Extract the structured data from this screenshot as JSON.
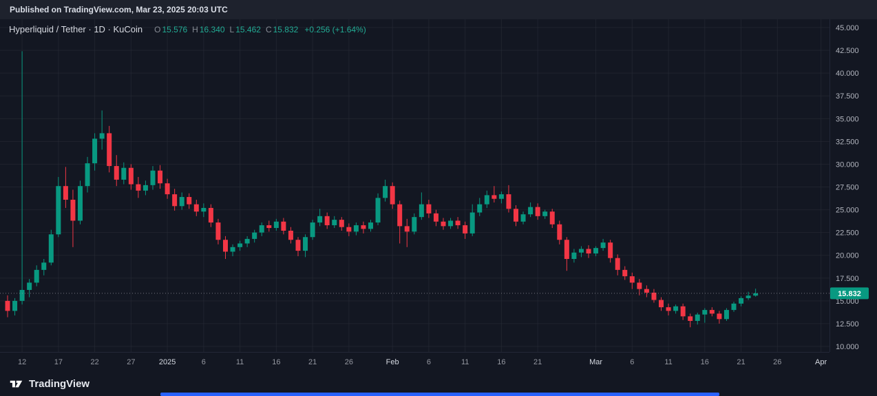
{
  "published_bar": {
    "text": "Published on TradingView.com, Mar 23, 2025 20:03 UTC"
  },
  "legend": {
    "title": "Hyperliquid / Tether · 1D · KuCoin",
    "ohlc": {
      "o_label": "O",
      "o": "15.576",
      "h_label": "H",
      "h": "16.340",
      "l_label": "L",
      "l": "15.462",
      "c_label": "C",
      "c": "15.832",
      "change": "+0.256 (+1.64%)"
    }
  },
  "price_label": "15.832",
  "y_axis": {
    "labels": [
      "45.000",
      "42.500",
      "40.000",
      "37.500",
      "35.000",
      "32.500",
      "30.000",
      "27.500",
      "25.000",
      "22.500",
      "20.000",
      "17.500",
      "15.000",
      "12.500",
      "10.000"
    ]
  },
  "footer": {
    "brand": "TradingView"
  },
  "colors": {
    "bg": "#131722",
    "topbar_bg": "#1e222d",
    "up": "#089981",
    "down": "#f23645",
    "value_text": "#22ab94",
    "axis_text": "#b2b5be",
    "axis_text_major": "#d6dae2",
    "muted_text": "#9598a1",
    "grid": "rgba(42,46,57,0.55)",
    "axis_line": "#232838",
    "price_line": "#9598a1",
    "price_label_bg": "#089981",
    "price_label_text": "#ffffff",
    "scrollbar": "#2962ff"
  },
  "chart_data": {
    "type": "candlestick",
    "title": "Hyperliquid / Tether",
    "exchange": "KuCoin",
    "interval": "1D",
    "start_date": "2024-12-10",
    "interval_days": 1,
    "end_date": "2025-03-23",
    "current": {
      "open": 15.576,
      "high": 16.34,
      "low": 15.462,
      "close": 15.832,
      "change": 0.256,
      "change_pct": 1.64
    },
    "last_price": 15.832,
    "ylim": [
      10,
      45
    ],
    "y_ticks": [
      45,
      42.5,
      40,
      37.5,
      35,
      32.5,
      30,
      27.5,
      25,
      22.5,
      20,
      17.5,
      15,
      12.5,
      10
    ],
    "x_ticks": [
      {
        "i": 2,
        "label": "12",
        "major": false
      },
      {
        "i": 7,
        "label": "17",
        "major": false
      },
      {
        "i": 12,
        "label": "22",
        "major": false
      },
      {
        "i": 17,
        "label": "27",
        "major": false
      },
      {
        "i": 22,
        "label": "2025",
        "major": true
      },
      {
        "i": 27,
        "label": "6",
        "major": false
      },
      {
        "i": 32,
        "label": "11",
        "major": false
      },
      {
        "i": 37,
        "label": "16",
        "major": false
      },
      {
        "i": 42,
        "label": "21",
        "major": false
      },
      {
        "i": 47,
        "label": "26",
        "major": false
      },
      {
        "i": 53,
        "label": "Feb",
        "major": true
      },
      {
        "i": 58,
        "label": "6",
        "major": false
      },
      {
        "i": 63,
        "label": "11",
        "major": false
      },
      {
        "i": 68,
        "label": "16",
        "major": false
      },
      {
        "i": 73,
        "label": "21",
        "major": false
      },
      {
        "i": 81,
        "label": "Mar",
        "major": true
      },
      {
        "i": 86,
        "label": "6",
        "major": false
      },
      {
        "i": 91,
        "label": "11",
        "major": false
      },
      {
        "i": 96,
        "label": "16",
        "major": false
      },
      {
        "i": 101,
        "label": "21",
        "major": false
      },
      {
        "i": 106,
        "label": "26",
        "major": false
      },
      {
        "i": 112,
        "label": "Apr",
        "major": true
      }
    ],
    "candles": [
      [
        15.0,
        15.6,
        13.2,
        13.9
      ],
      [
        13.9,
        15.3,
        13.4,
        15.0
      ],
      [
        15.0,
        42.4,
        14.6,
        16.2
      ],
      [
        16.2,
        17.4,
        15.4,
        17.0
      ],
      [
        17.0,
        18.9,
        16.6,
        18.4
      ],
      [
        18.4,
        19.6,
        17.8,
        19.2
      ],
      [
        19.2,
        22.8,
        18.9,
        22.3
      ],
      [
        22.3,
        28.6,
        22.0,
        27.6
      ],
      [
        27.6,
        29.7,
        25.2,
        26.1
      ],
      [
        26.1,
        27.2,
        20.9,
        23.8
      ],
      [
        23.8,
        28.2,
        23.4,
        27.6
      ],
      [
        27.6,
        30.8,
        26.9,
        30.1
      ],
      [
        30.1,
        33.4,
        29.3,
        32.8
      ],
      [
        32.8,
        35.9,
        31.6,
        33.4
      ],
      [
        33.4,
        34.2,
        29.1,
        29.8
      ],
      [
        29.8,
        31.0,
        27.6,
        28.3
      ],
      [
        28.3,
        30.2,
        27.8,
        29.6
      ],
      [
        29.6,
        30.0,
        27.2,
        27.8
      ],
      [
        27.8,
        28.6,
        26.3,
        27.1
      ],
      [
        27.1,
        28.2,
        26.6,
        27.7
      ],
      [
        27.7,
        29.8,
        27.2,
        29.3
      ],
      [
        29.3,
        29.9,
        27.3,
        27.9
      ],
      [
        27.9,
        28.4,
        26.2,
        26.7
      ],
      [
        26.7,
        27.3,
        24.9,
        25.4
      ],
      [
        25.4,
        26.9,
        25.0,
        26.4
      ],
      [
        26.4,
        26.8,
        25.1,
        25.6
      ],
      [
        25.6,
        26.1,
        24.3,
        24.8
      ],
      [
        24.8,
        25.7,
        24.2,
        25.2
      ],
      [
        25.2,
        25.6,
        23.1,
        23.6
      ],
      [
        23.6,
        24.0,
        21.2,
        21.7
      ],
      [
        21.7,
        22.1,
        19.6,
        20.4
      ],
      [
        20.4,
        21.2,
        19.9,
        20.9
      ],
      [
        20.9,
        21.6,
        20.5,
        21.3
      ],
      [
        21.3,
        22.1,
        20.9,
        21.8
      ],
      [
        21.8,
        22.8,
        21.4,
        22.5
      ],
      [
        22.5,
        23.6,
        22.1,
        23.3
      ],
      [
        23.3,
        23.8,
        22.6,
        23.0
      ],
      [
        23.0,
        24.0,
        22.7,
        23.7
      ],
      [
        23.7,
        24.1,
        22.3,
        22.7
      ],
      [
        22.7,
        23.1,
        21.3,
        21.7
      ],
      [
        21.7,
        22.0,
        19.9,
        20.5
      ],
      [
        20.5,
        22.3,
        19.8,
        22.0
      ],
      [
        22.0,
        23.9,
        21.7,
        23.6
      ],
      [
        23.6,
        25.1,
        23.2,
        24.3
      ],
      [
        24.3,
        24.7,
        22.9,
        23.3
      ],
      [
        23.3,
        24.3,
        23.0,
        23.9
      ],
      [
        23.9,
        24.2,
        22.7,
        23.1
      ],
      [
        23.1,
        23.5,
        22.1,
        22.6
      ],
      [
        22.6,
        23.6,
        22.2,
        23.3
      ],
      [
        23.3,
        23.7,
        22.4,
        22.9
      ],
      [
        22.9,
        23.9,
        22.6,
        23.6
      ],
      [
        23.6,
        26.8,
        23.3,
        26.3
      ],
      [
        26.3,
        28.3,
        25.9,
        27.6
      ],
      [
        27.6,
        28.0,
        25.1,
        25.6
      ],
      [
        25.6,
        26.0,
        21.3,
        23.2
      ],
      [
        23.2,
        24.0,
        20.9,
        22.6
      ],
      [
        22.6,
        24.6,
        22.3,
        24.2
      ],
      [
        24.2,
        26.9,
        23.9,
        25.6
      ],
      [
        25.6,
        26.1,
        24.1,
        24.6
      ],
      [
        24.6,
        25.0,
        23.2,
        23.7
      ],
      [
        23.7,
        24.1,
        22.8,
        23.2
      ],
      [
        23.2,
        24.1,
        22.9,
        23.8
      ],
      [
        23.8,
        24.2,
        22.9,
        23.3
      ],
      [
        23.3,
        23.7,
        21.8,
        22.4
      ],
      [
        22.4,
        25.6,
        22.1,
        24.7
      ],
      [
        24.7,
        26.3,
        24.3,
        25.6
      ],
      [
        25.6,
        27.1,
        25.2,
        26.6
      ],
      [
        26.6,
        27.6,
        25.8,
        26.2
      ],
      [
        26.2,
        27.0,
        25.7,
        26.7
      ],
      [
        26.7,
        27.7,
        24.7,
        25.1
      ],
      [
        25.1,
        25.5,
        23.2,
        23.7
      ],
      [
        23.7,
        24.8,
        23.4,
        24.5
      ],
      [
        24.5,
        25.8,
        24.2,
        25.3
      ],
      [
        25.3,
        25.7,
        23.9,
        24.3
      ],
      [
        24.3,
        25.0,
        24.0,
        24.8
      ],
      [
        24.8,
        25.1,
        23.0,
        23.4
      ],
      [
        23.4,
        23.8,
        21.2,
        21.7
      ],
      [
        21.7,
        22.0,
        18.3,
        19.6
      ],
      [
        19.6,
        20.7,
        19.2,
        20.3
      ],
      [
        20.3,
        21.0,
        19.8,
        20.7
      ],
      [
        20.7,
        21.1,
        19.7,
        20.2
      ],
      [
        20.2,
        21.0,
        19.9,
        20.8
      ],
      [
        20.8,
        21.8,
        20.5,
        21.4
      ],
      [
        21.4,
        21.7,
        19.2,
        19.7
      ],
      [
        19.7,
        20.1,
        17.8,
        18.4
      ],
      [
        18.4,
        18.8,
        17.3,
        17.7
      ],
      [
        17.7,
        18.1,
        16.3,
        17.0
      ],
      [
        17.0,
        17.4,
        15.6,
        16.3
      ],
      [
        16.3,
        16.7,
        15.4,
        15.9
      ],
      [
        15.9,
        16.3,
        14.8,
        15.1
      ],
      [
        15.1,
        15.4,
        13.9,
        14.3
      ],
      [
        14.3,
        14.7,
        13.4,
        13.9
      ],
      [
        13.9,
        14.6,
        13.6,
        14.4
      ],
      [
        14.4,
        14.7,
        12.9,
        13.3
      ],
      [
        13.3,
        13.6,
        12.1,
        12.8
      ],
      [
        12.8,
        13.7,
        12.4,
        13.5
      ],
      [
        13.5,
        14.2,
        12.6,
        14.0
      ],
      [
        14.0,
        14.3,
        13.3,
        13.6
      ],
      [
        13.6,
        13.9,
        12.5,
        13.0
      ],
      [
        13.0,
        14.2,
        12.8,
        14.0
      ],
      [
        14.0,
        14.9,
        13.8,
        14.7
      ],
      [
        14.7,
        15.5,
        14.4,
        15.3
      ],
      [
        15.3,
        16.0,
        15.1,
        15.576
      ],
      [
        15.576,
        16.34,
        15.462,
        15.832
      ]
    ]
  }
}
